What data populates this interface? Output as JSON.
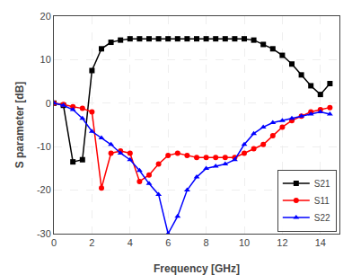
{
  "chart_data": {
    "type": "line",
    "xlabel": "Frequency [GHz]",
    "ylabel": "S parameter [dB]",
    "x": [
      0.0,
      0.5,
      1.0,
      1.5,
      2.0,
      2.5,
      3.0,
      3.5,
      4.0,
      4.5,
      5.0,
      5.5,
      6.0,
      6.5,
      7.0,
      7.5,
      8.0,
      8.5,
      9.0,
      9.5,
      10.0,
      10.5,
      11.0,
      11.5,
      12.0,
      12.5,
      13.0,
      13.5,
      14.0,
      14.5
    ],
    "series": [
      {
        "name": "S21",
        "color": "#000000",
        "marker": "square",
        "values": [
          0.0,
          -0.5,
          -13.5,
          -13.0,
          7.5,
          12.5,
          14.0,
          14.5,
          14.8,
          14.8,
          14.8,
          14.8,
          14.8,
          14.8,
          14.8,
          14.8,
          14.8,
          14.8,
          14.8,
          14.8,
          14.8,
          14.5,
          13.5,
          12.5,
          11.0,
          9.0,
          6.5,
          4.0,
          2.0,
          4.5
        ]
      },
      {
        "name": "S11",
        "color": "#ff0000",
        "marker": "circle",
        "values": [
          0.0,
          -0.3,
          -0.8,
          -1.2,
          -2.0,
          -19.5,
          -11.5,
          -11.0,
          -11.5,
          -18.0,
          -16.5,
          -14.0,
          -12.0,
          -11.5,
          -12.0,
          -12.5,
          -12.5,
          -12.5,
          -12.5,
          -12.5,
          -11.5,
          -10.5,
          -9.5,
          -7.5,
          -5.5,
          -4.0,
          -3.0,
          -2.0,
          -1.5,
          -1.0
        ]
      },
      {
        "name": "S22",
        "color": "#0000ff",
        "marker": "triangle-up",
        "values": [
          0.0,
          -0.5,
          -1.5,
          -3.5,
          -6.5,
          -8.0,
          -9.5,
          -11.5,
          -13.0,
          -15.5,
          -18.5,
          -21.0,
          -30.0,
          -26.0,
          -20.0,
          -17.0,
          -15.0,
          -14.5,
          -14.0,
          -13.0,
          -9.5,
          -7.0,
          -5.5,
          -4.5,
          -4.0,
          -3.5,
          -3.0,
          -2.5,
          -2.0,
          -2.5
        ]
      }
    ],
    "xlim": [
      0,
      15
    ],
    "ylim": [
      -30,
      20
    ],
    "xticks": [
      0,
      2,
      4,
      6,
      8,
      10,
      12,
      14
    ],
    "yticks": [
      -30,
      -20,
      -10,
      0,
      10,
      20
    ],
    "grid": true,
    "legend": "lower right"
  }
}
